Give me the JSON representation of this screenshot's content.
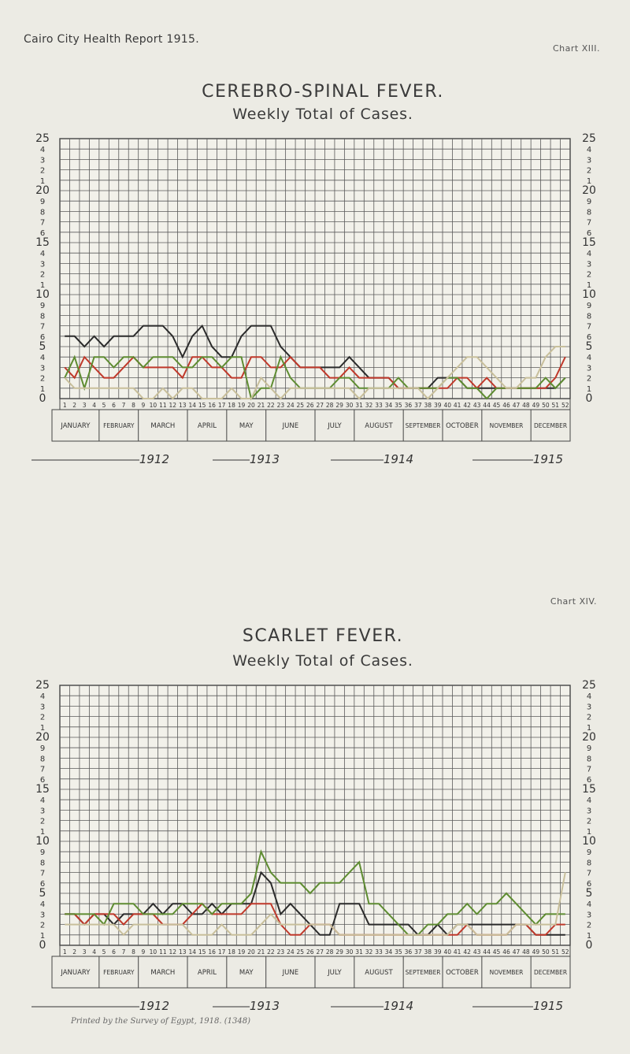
{
  "header": {
    "report_title": "Cairo City Health Report 1915.",
    "chart_labels": [
      "Chart XIII.",
      "Chart XIV."
    ]
  },
  "footnote": "Printed by the Survey of Egypt, 1918. (1348)",
  "colors": {
    "1912": "#2b2b2b",
    "1913": "#c0392b",
    "1914": "#5e8c31",
    "1915": "#c8bf9b",
    "grid": "#5a5a5a"
  },
  "axis": {
    "y_left_labels": [
      "25",
      "4",
      "3",
      "2",
      "1",
      "20",
      "9",
      "8",
      "7",
      "6",
      "15",
      "4",
      "3",
      "2",
      "1",
      "10",
      "9",
      "8",
      "7",
      "6",
      "5",
      "4",
      "3",
      "2",
      "1",
      "0"
    ],
    "week_labels": [
      "1",
      "2",
      "3",
      "4",
      "5",
      "6",
      "7",
      "8",
      "9",
      "10",
      "11",
      "12",
      "13",
      "14",
      "15",
      "16",
      "17",
      "18",
      "19",
      "20",
      "21",
      "22",
      "23",
      "24",
      "25",
      "26",
      "27",
      "28",
      "29",
      "30",
      "31",
      "32",
      "33",
      "34",
      "35",
      "36",
      "37",
      "38",
      "39",
      "40",
      "41",
      "42",
      "43",
      "44",
      "45",
      "46",
      "47",
      "48",
      "49",
      "50",
      "51",
      "52"
    ],
    "months": [
      "JANUARY",
      "FEBRUARY",
      "MARCH",
      "APRIL",
      "MAY",
      "JUNE",
      "JULY",
      "AUGUST",
      "SEPTEMBER",
      "OCTOBER",
      "NOVEMBER",
      "DECEMBER"
    ]
  },
  "chart_data": [
    {
      "type": "line",
      "title": "CEREBRO-SPINAL FEVER.",
      "subtitle": "Weekly Total of Cases.",
      "ylim": [
        0,
        25
      ],
      "x": [
        1,
        2,
        3,
        4,
        5,
        6,
        7,
        8,
        9,
        10,
        11,
        12,
        13,
        14,
        15,
        16,
        17,
        18,
        19,
        20,
        21,
        22,
        23,
        24,
        25,
        26,
        27,
        28,
        29,
        30,
        31,
        32,
        33,
        34,
        35,
        36,
        37,
        38,
        39,
        40,
        41,
        42,
        43,
        44,
        45,
        46,
        47,
        48,
        49,
        50,
        51,
        52
      ],
      "series": [
        {
          "name": "1912",
          "values": [
            6,
            6,
            5,
            6,
            5,
            6,
            6,
            6,
            7,
            7,
            7,
            6,
            4,
            6,
            7,
            5,
            4,
            4,
            6,
            7,
            7,
            7,
            5,
            4,
            3,
            3,
            3,
            3,
            3,
            4,
            3,
            2,
            2,
            2,
            1,
            1,
            1,
            1,
            2,
            2,
            2,
            1,
            1,
            1,
            1,
            1,
            1,
            1,
            1,
            1,
            1,
            2
          ]
        },
        {
          "name": "1913",
          "values": [
            3,
            2,
            4,
            3,
            2,
            2,
            3,
            4,
            3,
            3,
            3,
            3,
            2,
            4,
            4,
            3,
            3,
            2,
            2,
            4,
            4,
            3,
            3,
            4,
            3,
            3,
            3,
            2,
            2,
            3,
            2,
            2,
            2,
            2,
            1,
            1,
            1,
            1,
            1,
            1,
            2,
            2,
            1,
            2,
            1,
            1,
            1,
            1,
            1,
            1,
            2,
            4
          ]
        },
        {
          "name": "1914",
          "values": [
            2,
            4,
            1,
            4,
            4,
            3,
            4,
            4,
            3,
            4,
            4,
            4,
            3,
            3,
            4,
            4,
            3,
            4,
            4,
            0,
            1,
            1,
            4,
            2,
            1,
            1,
            1,
            1,
            2,
            2,
            1,
            1,
            1,
            1,
            2,
            1,
            1,
            1,
            1,
            2,
            2,
            1,
            1,
            0,
            1,
            1,
            1,
            1,
            1,
            2,
            1,
            2
          ]
        },
        {
          "name": "1915",
          "values": [
            2,
            1,
            1,
            1,
            1,
            1,
            1,
            1,
            0,
            0,
            1,
            0,
            1,
            1,
            0,
            0,
            0,
            1,
            0,
            0,
            2,
            1,
            0,
            1,
            1,
            1,
            1,
            1,
            1,
            1,
            0,
            1,
            1,
            1,
            1,
            1,
            1,
            0,
            1,
            2,
            3,
            4,
            4,
            3,
            2,
            1,
            1,
            2,
            2,
            4,
            5,
            5
          ]
        }
      ]
    },
    {
      "type": "line",
      "title": "SCARLET FEVER.",
      "subtitle": "Weekly Total of Cases.",
      "ylim": [
        0,
        25
      ],
      "x": [
        1,
        2,
        3,
        4,
        5,
        6,
        7,
        8,
        9,
        10,
        11,
        12,
        13,
        14,
        15,
        16,
        17,
        18,
        19,
        20,
        21,
        22,
        23,
        24,
        25,
        26,
        27,
        28,
        29,
        30,
        31,
        32,
        33,
        34,
        35,
        36,
        37,
        38,
        39,
        40,
        41,
        42,
        43,
        44,
        45,
        46,
        47,
        48,
        49,
        50,
        51,
        52
      ],
      "series": [
        {
          "name": "1912",
          "values": [
            3,
            3,
            2,
            3,
            3,
            2,
            3,
            3,
            3,
            4,
            3,
            4,
            4,
            3,
            3,
            4,
            3,
            4,
            4,
            4,
            7,
            6,
            3,
            4,
            3,
            2,
            1,
            1,
            4,
            4,
            4,
            2,
            2,
            2,
            2,
            2,
            1,
            1,
            2,
            1,
            2,
            2,
            2,
            2,
            2,
            2,
            2,
            2,
            1,
            1,
            1,
            1
          ]
        },
        {
          "name": "1913",
          "values": [
            3,
            3,
            2,
            3,
            3,
            3,
            2,
            3,
            3,
            3,
            2,
            2,
            2,
            3,
            4,
            3,
            3,
            3,
            3,
            4,
            4,
            4,
            2,
            1,
            1,
            2,
            2,
            2,
            1,
            1,
            1,
            1,
            1,
            1,
            1,
            1,
            1,
            1,
            1,
            1,
            1,
            2,
            1,
            1,
            1,
            1,
            2,
            2,
            1,
            1,
            2,
            2
          ]
        },
        {
          "name": "1914",
          "values": [
            3,
            3,
            3,
            3,
            2,
            4,
            4,
            4,
            3,
            3,
            3,
            3,
            4,
            4,
            4,
            3,
            4,
            4,
            4,
            5,
            9,
            7,
            6,
            6,
            6,
            5,
            6,
            6,
            6,
            7,
            8,
            4,
            4,
            3,
            2,
            1,
            1,
            2,
            2,
            3,
            3,
            4,
            3,
            4,
            4,
            5,
            4,
            3,
            2,
            3,
            3,
            3
          ]
        },
        {
          "name": "1915",
          "values": [
            2,
            2,
            2,
            2,
            2,
            2,
            1,
            2,
            2,
            2,
            2,
            2,
            2,
            1,
            1,
            1,
            2,
            1,
            1,
            1,
            2,
            3,
            2,
            2,
            2,
            2,
            2,
            2,
            1,
            1,
            1,
            1,
            1,
            1,
            1,
            1,
            1,
            1,
            1,
            1,
            2,
            2,
            1,
            1,
            1,
            1,
            2,
            2,
            2,
            2,
            2,
            7
          ]
        }
      ]
    }
  ]
}
